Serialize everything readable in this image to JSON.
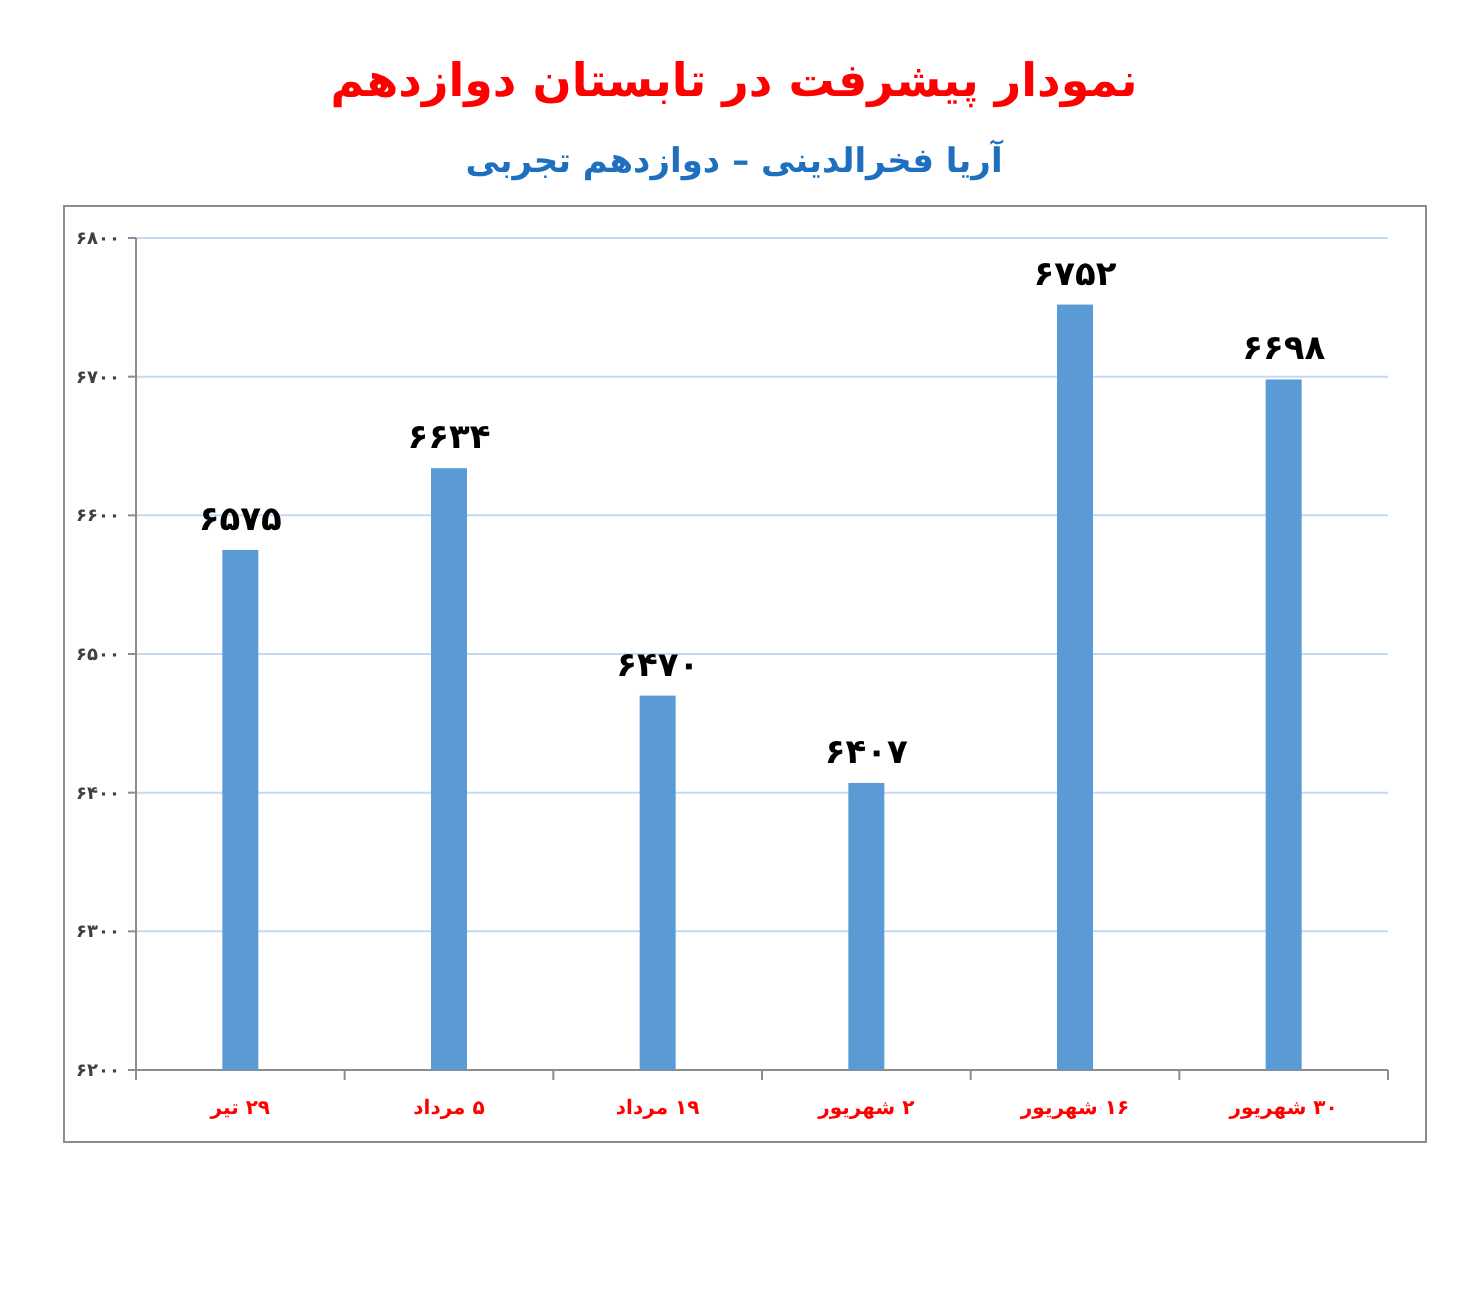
{
  "chart_data": {
    "type": "bar",
    "title": "نمودار پیشرفت در تابستان دوازدهم",
    "subtitle": "آریا فخرالدینی – دوازدهم تجربی",
    "categories": [
      "۲۹ تیر",
      "۵ مرداد",
      "۱۹ مرداد",
      "۲ شهریور",
      "۱۶ شهریور",
      "۳۰ شهریور"
    ],
    "values": [
      6575,
      6634,
      6470,
      6407,
      6752,
      6698
    ],
    "value_labels": [
      "۶۵۷۵",
      "۶۶۳۴",
      "۶۴۷۰",
      "۶۴۰۷",
      "۶۷۵۲",
      "۶۶۹۸"
    ],
    "color": "#5b9bd5",
    "ylim": [
      6200,
      6800
    ],
    "yticks": [
      {
        "value": 6200,
        "label": "۶۲۰۰"
      },
      {
        "value": 6300,
        "label": "۶۳۰۰"
      },
      {
        "value": 6400,
        "label": "۶۴۰۰"
      },
      {
        "value": 6500,
        "label": "۶۵۰۰"
      },
      {
        "value": 6600,
        "label": "۶۶۰۰"
      },
      {
        "value": 6700,
        "label": "۶۷۰۰"
      },
      {
        "value": 6800,
        "label": "۶۸۰۰"
      }
    ],
    "grid": "y"
  }
}
